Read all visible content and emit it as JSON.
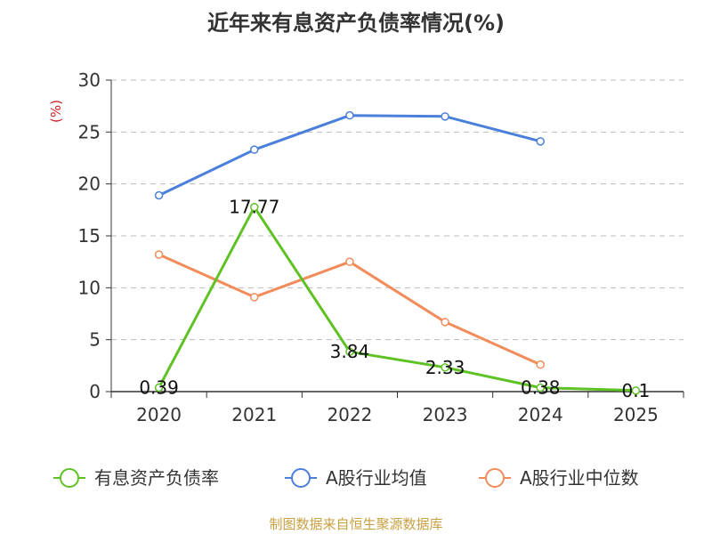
{
  "chart_data": {
    "type": "line",
    "title": "近年来有息资产负债率情况(%)",
    "ylabel": "(%)",
    "x": [
      "2020",
      "2021",
      "2022",
      "2023",
      "2024",
      "2025"
    ],
    "ylim": [
      0,
      30
    ],
    "yticks": [
      0,
      5,
      10,
      15,
      20,
      25,
      30
    ],
    "grid": true,
    "legend": "bottom",
    "series": [
      {
        "name": "有息资产负债率",
        "color": "#5ec224",
        "values": [
          0.39,
          17.77,
          3.84,
          2.33,
          0.38,
          0.1
        ],
        "labels": [
          "0.39",
          "17.77",
          "3.84",
          "2.33",
          "0.38",
          "0.1"
        ]
      },
      {
        "name": "A股行业均值",
        "color": "#4a7fdc",
        "values": [
          18.9,
          23.3,
          26.6,
          26.5,
          24.1,
          null
        ]
      },
      {
        "name": "A股行业中位数",
        "color": "#f28c5a",
        "values": [
          13.2,
          9.1,
          12.5,
          6.7,
          2.6,
          null
        ]
      }
    ]
  },
  "source_note": "制图数据来自恒生聚源数据库",
  "ylabel_color": "#cc2222",
  "axis_color": "#333333",
  "grid_color": "#bbbbbb"
}
